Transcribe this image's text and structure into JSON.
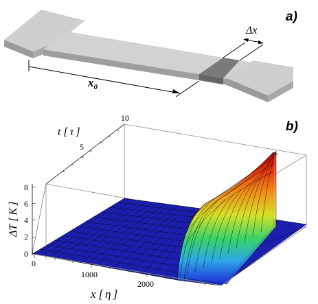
{
  "panel_a": {
    "label": "a)",
    "dim_x0": "x",
    "dim_x0_sub": "0",
    "dim_dx": "Δx"
  },
  "panel_b": {
    "label": "b)",
    "t_axis": {
      "label": "t",
      "unit": "τ",
      "ticks": [
        "5",
        "10"
      ]
    },
    "y_axis": {
      "label": "ΔT",
      "unit": "K",
      "ticks": [
        "0",
        "2",
        "4",
        "6",
        "8"
      ]
    },
    "x_axis": {
      "label": "x",
      "unit": "η",
      "ticks": [
        "0",
        "1000",
        "2000"
      ]
    }
  },
  "colors": {
    "bridge_top": "#cfcfcf",
    "bridge_side": "#9b9b9b",
    "hotspot": "#7a7a7a",
    "floor": "#1c1fae",
    "mesh": "#000000"
  }
}
